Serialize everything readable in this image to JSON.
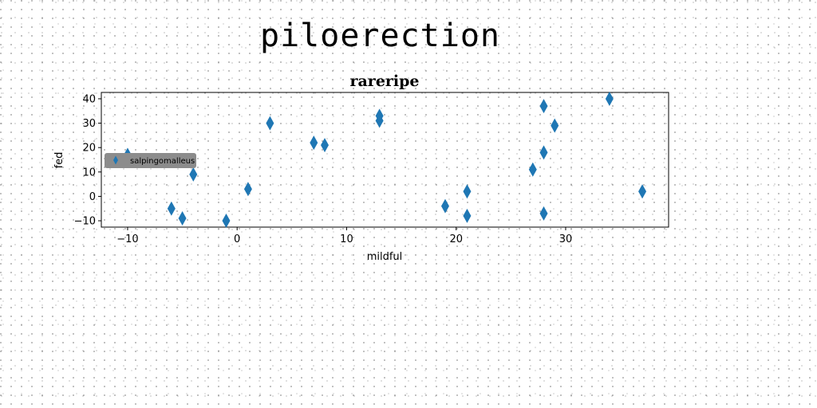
{
  "page": {
    "title": "piloerection"
  },
  "chart_data": {
    "type": "scatter",
    "title": "rareripe",
    "xlabel": "mildful",
    "ylabel": "fed",
    "xlim": [
      -12.4,
      39.4
    ],
    "ylim": [
      -12.6,
      42.6
    ],
    "xticks": [
      -10,
      0,
      10,
      20,
      30
    ],
    "yticks": [
      -10,
      0,
      10,
      20,
      30,
      40
    ],
    "grid": false,
    "legend": {
      "location": "center-left",
      "entries": [
        "salpingomalleus"
      ]
    },
    "colors": {
      "series": "#1f77b4",
      "legend_bg": "#8c8c8c"
    },
    "marker": "thin_diamond",
    "series": [
      {
        "name": "salpingomalleus",
        "points": [
          [
            -10,
            17
          ],
          [
            -6,
            -5
          ],
          [
            -5,
            -9
          ],
          [
            -4,
            9
          ],
          [
            -1,
            -10
          ],
          [
            1,
            3
          ],
          [
            3,
            30
          ],
          [
            7,
            22
          ],
          [
            8,
            21
          ],
          [
            13,
            33
          ],
          [
            13,
            31
          ],
          [
            19,
            -4
          ],
          [
            21,
            2
          ],
          [
            21,
            -8
          ],
          [
            27,
            11
          ],
          [
            28,
            37
          ],
          [
            28,
            18
          ],
          [
            28,
            -7
          ],
          [
            29,
            29
          ],
          [
            34,
            40
          ],
          [
            37,
            2
          ]
        ]
      }
    ]
  }
}
